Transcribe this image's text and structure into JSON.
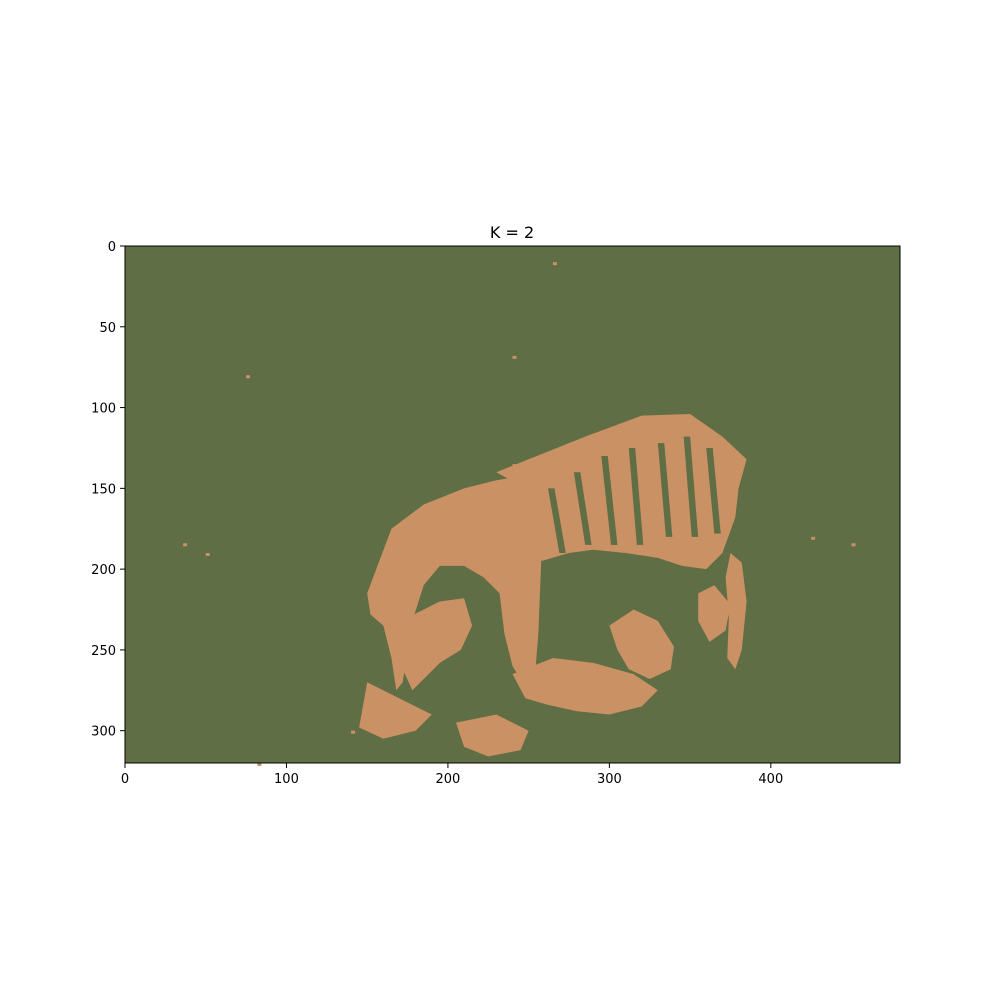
{
  "chart_data": {
    "type": "heatmap",
    "title": "K = 2",
    "xlabel": "",
    "ylabel": "",
    "image_width": 480,
    "image_height": 320,
    "xlim": [
      0,
      480
    ],
    "ylim": [
      320,
      0
    ],
    "x_ticks": [
      0,
      100,
      200,
      300,
      400
    ],
    "y_ticks": [
      0,
      50,
      100,
      150,
      200,
      250,
      300
    ],
    "grid": false,
    "legend": "none",
    "cluster_colors": {
      "background": "#5f6e45",
      "foreground": "#c99164"
    },
    "num_clusters": 2
  }
}
